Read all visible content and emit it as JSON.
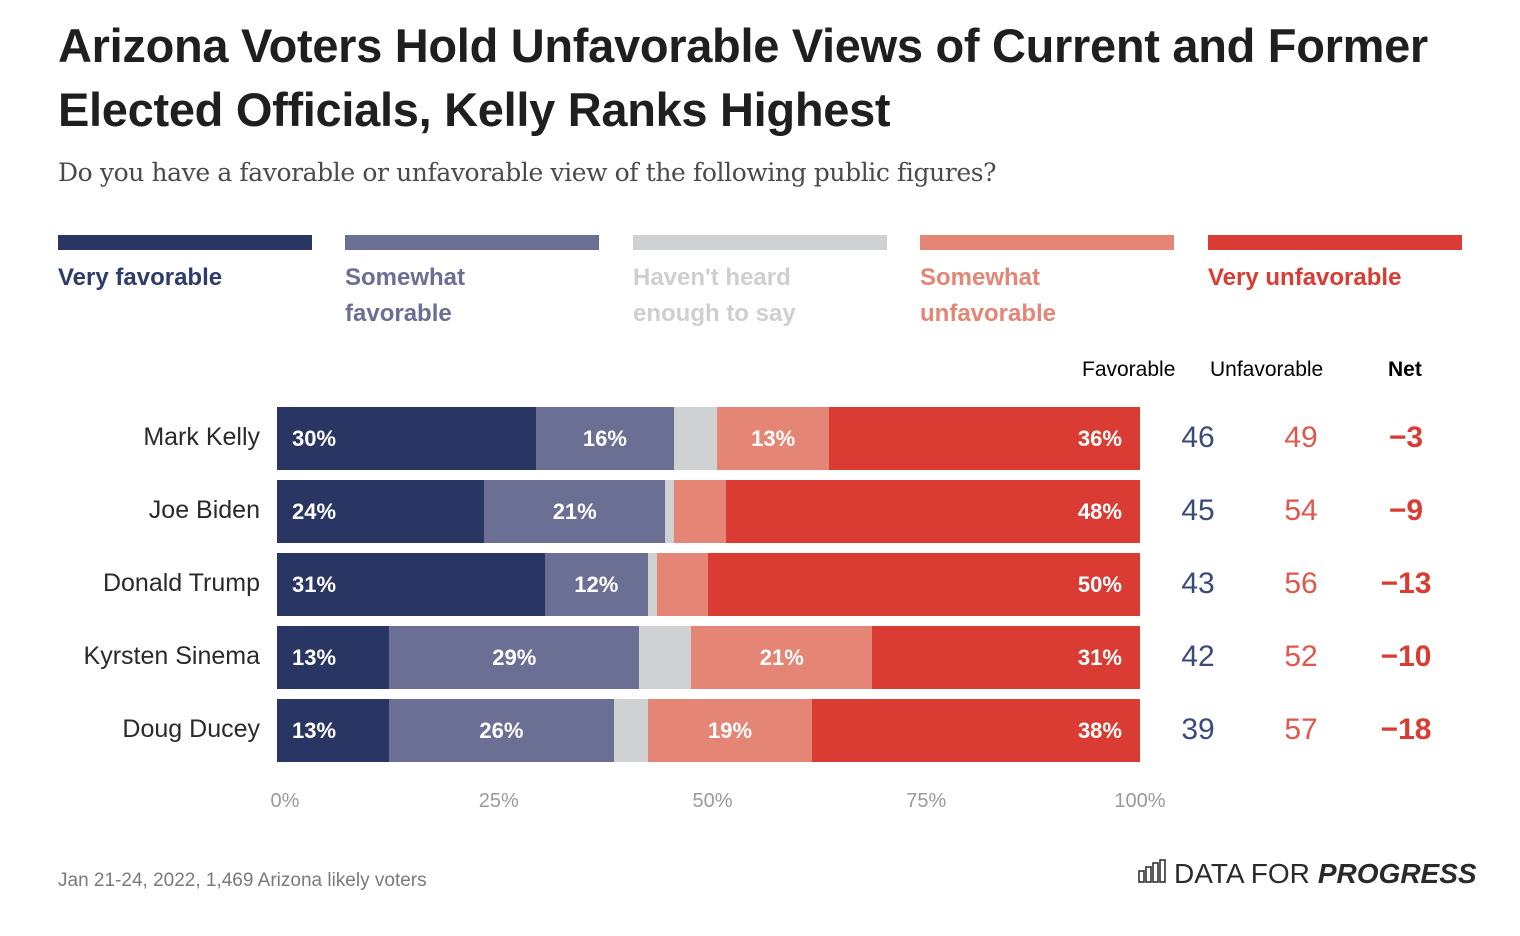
{
  "header": {
    "title": "Arizona Voters Hold Unfavorable Views of Current and Former Elected Officials, Kelly Ranks Highest",
    "subtitle": "Do you have a favorable or unfavorable view of the following public figures?"
  },
  "colors": {
    "very_favorable": "#293562",
    "somewhat_favorable": "#6b6f93",
    "havent_heard": "#d0d1d3",
    "somewhat_unfavorable": "#e48575",
    "very_unfavorable": "#da3c34",
    "favorable_text": "#3b4a7a",
    "unfavorable_text": "#e0574d"
  },
  "legend": [
    {
      "key": "very_favorable",
      "label": "Very favorable"
    },
    {
      "key": "somewhat_favorable",
      "label": "Somewhat favorable"
    },
    {
      "key": "havent_heard",
      "label": "Haven't heard enough to say"
    },
    {
      "key": "somewhat_unfavorable",
      "label": "Somewhat unfavorable"
    },
    {
      "key": "very_unfavorable",
      "label": "Very unfavorable"
    }
  ],
  "columns": {
    "favorable": "Favorable",
    "unfavorable": "Unfavorable",
    "net": "Net"
  },
  "chart_data": {
    "type": "bar",
    "orientation": "horizontal-stacked",
    "title": "Arizona Voters Hold Unfavorable Views of Current and Former Elected Officials, Kelly Ranks Highest",
    "subtitle": "Do you have a favorable or unfavorable view of the following public figures?",
    "categories": [
      "Mark Kelly",
      "Joe Biden",
      "Donald Trump",
      "Kyrsten Sinema",
      "Doug Ducey"
    ],
    "series": [
      {
        "name": "Very favorable",
        "values": [
          30,
          24,
          31,
          13,
          13
        ]
      },
      {
        "name": "Somewhat favorable",
        "values": [
          16,
          21,
          12,
          29,
          26
        ]
      },
      {
        "name": "Haven't heard enough to say",
        "values": [
          5,
          1,
          1,
          6,
          4
        ]
      },
      {
        "name": "Somewhat unfavorable",
        "values": [
          13,
          6,
          6,
          21,
          19
        ]
      },
      {
        "name": "Very unfavorable",
        "values": [
          36,
          48,
          50,
          31,
          38
        ]
      }
    ],
    "segment_labels": [
      [
        "30%",
        "16%",
        "",
        "13%",
        "36%"
      ],
      [
        "24%",
        "21%",
        "",
        "",
        "48%"
      ],
      [
        "31%",
        "12%",
        "",
        "",
        "50%"
      ],
      [
        "13%",
        "29%",
        "",
        "21%",
        "31%"
      ],
      [
        "13%",
        "26%",
        "",
        "19%",
        "38%"
      ]
    ],
    "table": {
      "favorable": [
        46,
        45,
        43,
        42,
        39
      ],
      "unfavorable": [
        49,
        54,
        56,
        52,
        57
      ],
      "net": [
        "−3",
        "−9",
        "−13",
        "−10",
        "−18"
      ]
    },
    "xlabel": "",
    "ylabel": "",
    "xlim": [
      0,
      100
    ],
    "xticks": [
      "0%",
      "25%",
      "50%",
      "75%",
      "100%"
    ],
    "grid": false,
    "legend_position": "top"
  },
  "footer": {
    "note": "Jan 21-24, 2022, 1,469 Arizona likely voters",
    "brand_regular": "DATA FOR",
    "brand_bold": "PROGRESS"
  }
}
